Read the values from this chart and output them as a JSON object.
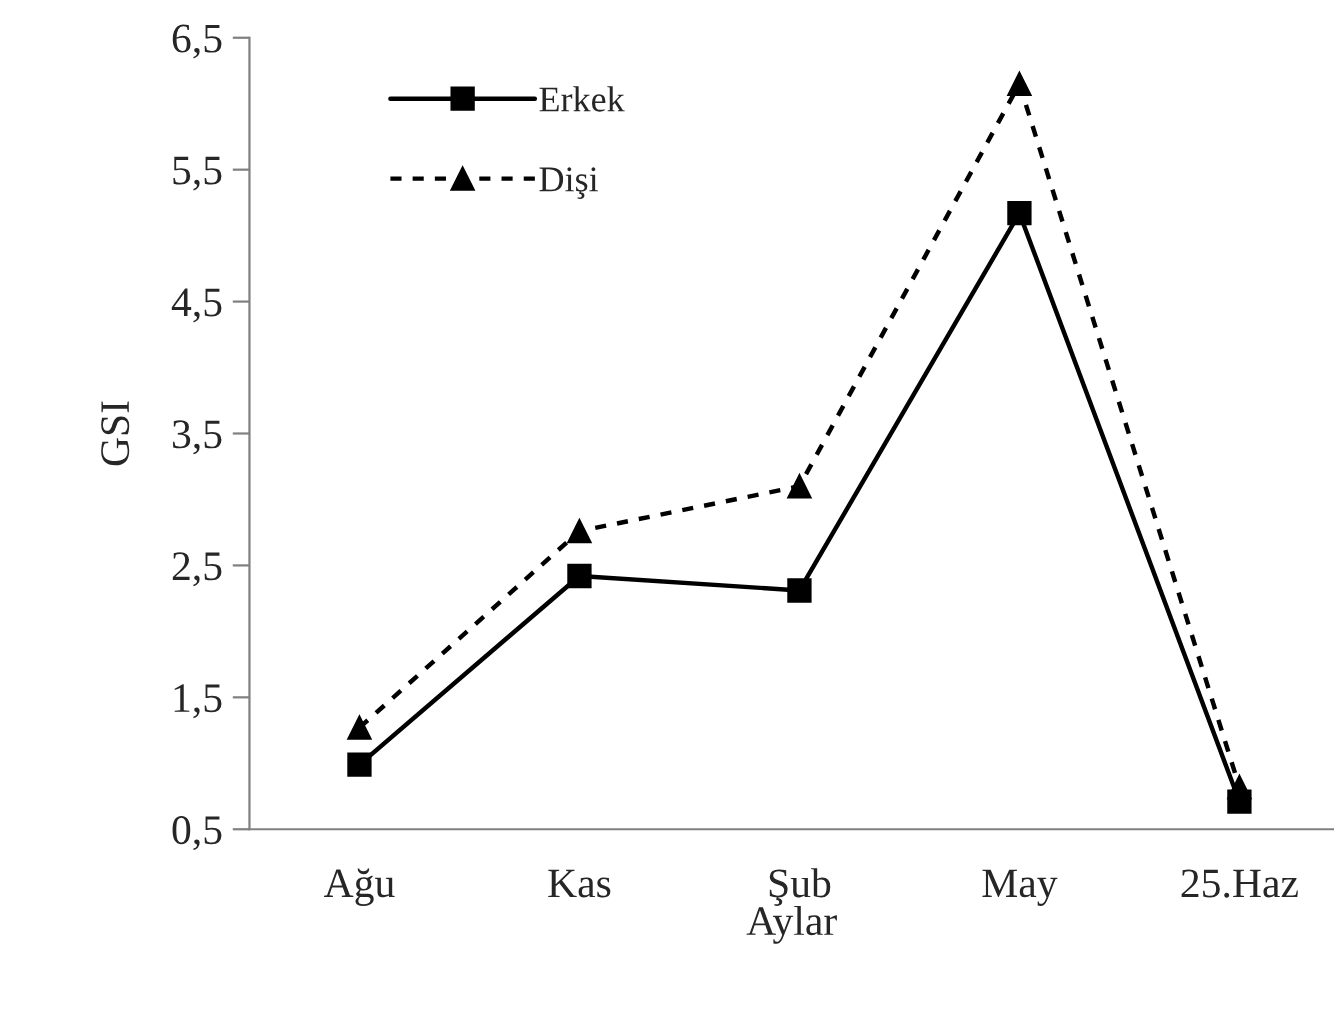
{
  "chart_data": {
    "type": "line",
    "xlabel": "Aylar",
    "ylabel": "GSI",
    "categories": [
      "Ağu",
      "Kas",
      "Şub",
      "May",
      "25.Haz"
    ],
    "series": [
      {
        "name": "Erkek",
        "color": "#000000",
        "marker": "square",
        "line_style": "solid",
        "values": [
          0.99,
          2.42,
          2.31,
          5.17,
          0.71
        ]
      },
      {
        "name": "Dişi",
        "color": "#000000",
        "marker": "triangle",
        "line_style": "dashed",
        "values": [
          1.27,
          2.76,
          3.1,
          6.15,
          0.82
        ]
      }
    ],
    "ylim": [
      0.5,
      6.5
    ],
    "yticks": [
      {
        "value": 0.5,
        "label": "0,5"
      },
      {
        "value": 1.5,
        "label": "1,5"
      },
      {
        "value": 2.5,
        "label": "2,5"
      },
      {
        "value": 3.5,
        "label": "3,5"
      },
      {
        "value": 4.5,
        "label": "4,5"
      },
      {
        "value": 5.5,
        "label": "5,5"
      },
      {
        "value": 6.5,
        "label": "6,5"
      }
    ],
    "grid": false,
    "legend": "top left"
  }
}
